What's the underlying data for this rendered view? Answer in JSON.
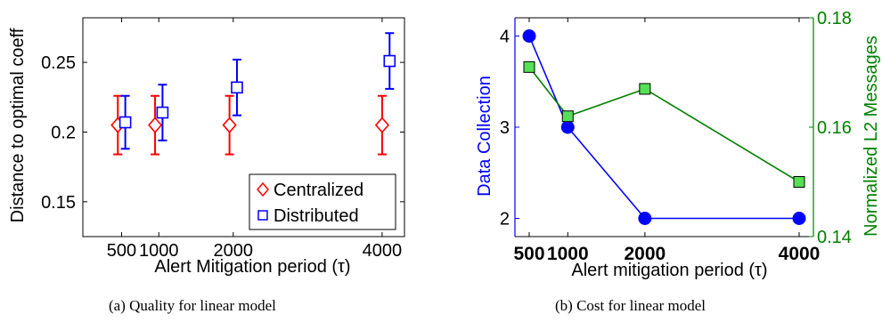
{
  "chart_data": [
    {
      "type": "scatter",
      "caption": "(a) Quality for linear model",
      "xlabel": "Alert Mitigation period (τ)",
      "ylabel": "Distance to optimal coeff",
      "x_ticks": [
        500,
        1000,
        2000,
        4000
      ],
      "y_ticks": [
        "0.15",
        "0.2",
        "0.25"
      ],
      "xlim": [
        -20,
        4300
      ],
      "ylim": [
        0.125,
        0.282
      ],
      "legend_position": "bottom-right",
      "grid": false,
      "series": [
        {
          "name": "Centralized",
          "marker": "diamond",
          "color": "#ff0000",
          "x": [
            450,
            950,
            1950,
            4000
          ],
          "y": [
            0.205,
            0.205,
            0.205,
            0.205
          ],
          "err_low": [
            0.184,
            0.184,
            0.184,
            0.184
          ],
          "err_high": [
            0.226,
            0.226,
            0.226,
            0.226
          ]
        },
        {
          "name": "Distributed",
          "marker": "square",
          "color": "#0000ff",
          "x": [
            550,
            1050,
            2050,
            4100
          ],
          "y": [
            0.207,
            0.214,
            0.232,
            0.251
          ],
          "err_low": [
            0.188,
            0.194,
            0.212,
            0.231
          ],
          "err_high": [
            0.226,
            0.234,
            0.252,
            0.271
          ]
        }
      ]
    },
    {
      "type": "line",
      "caption": "(b) Cost for linear model",
      "xlabel": "Alert mitigation period (τ)",
      "ylabel_left": "Data Collection",
      "ylabel_right": "Normalized L2 Messages",
      "x_ticks": [
        500,
        1000,
        2000,
        4000
      ],
      "y_ticks_left": [
        "2",
        "3",
        "4"
      ],
      "y_ticks_right": [
        "0.14",
        "0.16",
        "0.18"
      ],
      "xlim": [
        500,
        4000
      ],
      "ylim_left": [
        1.8,
        4.2
      ],
      "ylim_right": [
        0.14,
        0.18
      ],
      "grid": false,
      "series": [
        {
          "name": "Data Collection",
          "axis": "left",
          "marker": "circle",
          "color": "#0000ff",
          "x": [
            500,
            1000,
            2000,
            4000
          ],
          "y": [
            4,
            3,
            2,
            2
          ]
        },
        {
          "name": "Normalized L2 Messages",
          "axis": "right",
          "marker": "square",
          "color": "#008000",
          "fill": "#55e055",
          "x": [
            500,
            1000,
            2000,
            4000
          ],
          "y": [
            0.171,
            0.162,
            0.167,
            0.15
          ]
        }
      ]
    }
  ]
}
